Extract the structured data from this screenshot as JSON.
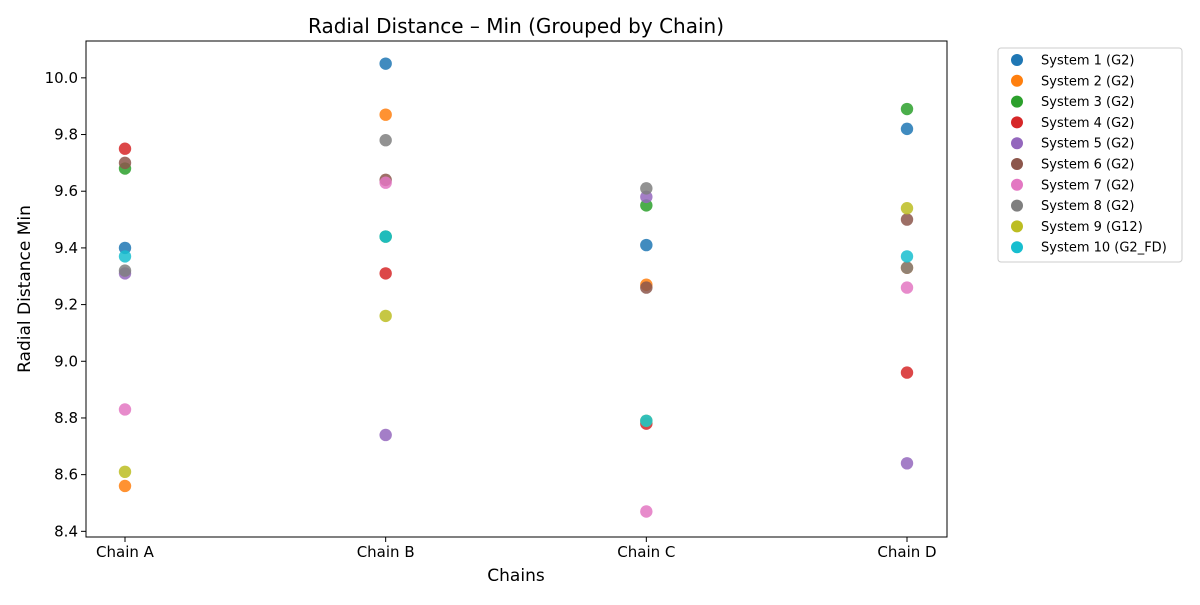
{
  "chart_data": {
    "type": "scatter",
    "title": "Radial Distance – Min (Grouped by Chain)",
    "xlabel": "Chains",
    "ylabel": "Radial Distance Min",
    "categories": [
      "Chain A",
      "Chain B",
      "Chain C",
      "Chain D"
    ],
    "ylim": [
      8.38,
      10.13
    ],
    "yticks": [
      "8.4",
      "8.6",
      "8.8",
      "9.0",
      "9.2",
      "9.4",
      "9.6",
      "9.8",
      "10.0"
    ],
    "grid": false,
    "legend_position": "outside-right",
    "series": [
      {
        "name": "System 1 (G2)",
        "color": "#1f77b4",
        "values": [
          9.4,
          10.05,
          9.41,
          9.82
        ]
      },
      {
        "name": "System 2 (G2)",
        "color": "#ff7f0e",
        "values": [
          8.56,
          9.87,
          9.27,
          9.33
        ]
      },
      {
        "name": "System 3 (G2)",
        "color": "#2ca02c",
        "values": [
          9.68,
          9.44,
          9.55,
          9.89
        ]
      },
      {
        "name": "System 4 (G2)",
        "color": "#d62728",
        "values": [
          9.75,
          9.31,
          8.78,
          8.96
        ]
      },
      {
        "name": "System 5 (G2)",
        "color": "#9467bd",
        "values": [
          9.31,
          8.74,
          9.58,
          8.64
        ]
      },
      {
        "name": "System 6 (G2)",
        "color": "#8c564b",
        "values": [
          9.7,
          9.64,
          9.26,
          9.5
        ]
      },
      {
        "name": "System 7 (G2)",
        "color": "#e377c2",
        "values": [
          8.83,
          9.63,
          8.47,
          9.26
        ]
      },
      {
        "name": "System 8 (G2)",
        "color": "#7f7f7f",
        "values": [
          9.32,
          9.78,
          9.61,
          9.33
        ]
      },
      {
        "name": "System 9 (G12)",
        "color": "#bcbd22",
        "values": [
          8.61,
          9.16,
          8.79,
          9.54
        ]
      },
      {
        "name": "System 10 (G2_FD)",
        "color": "#17becf",
        "values": [
          9.37,
          9.44,
          8.79,
          9.37
        ]
      }
    ]
  }
}
